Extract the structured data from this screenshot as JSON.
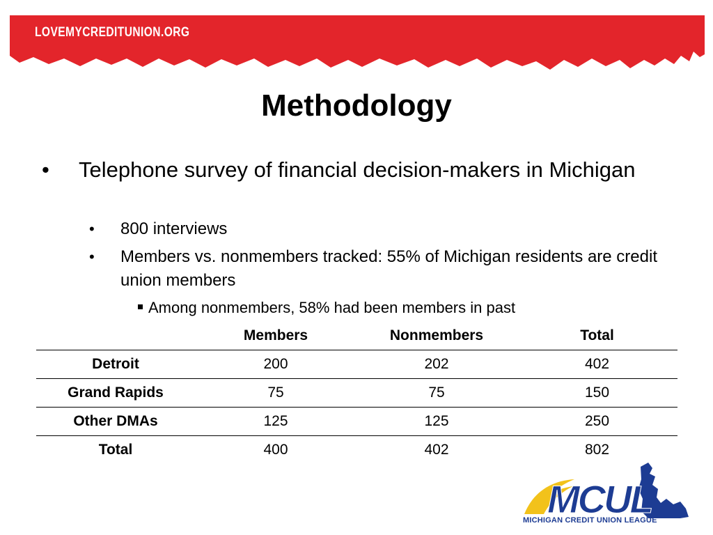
{
  "banner": {
    "url_text": "LOVEMYCREDITUNION.ORG",
    "color": "#e3252b"
  },
  "slide": {
    "title": "Methodology",
    "bullet1": "Telephone survey of financial decision-makers in Michigan",
    "bullet1_sub": [
      "800 interviews",
      "Members vs. nonmembers tracked: 55% of Michigan residents are credit union members"
    ],
    "bullet1_subsub": "Among nonmembers, 58% had been members in past"
  },
  "table": {
    "headers": [
      "",
      "Members",
      "Nonmembers",
      "Total"
    ],
    "rows": [
      [
        "Detroit",
        "200",
        "202",
        "402"
      ],
      [
        "Grand Rapids",
        "75",
        "75",
        "150"
      ],
      [
        "Other DMAs",
        "125",
        "125",
        "250"
      ],
      [
        "Total",
        "400",
        "402",
        "802"
      ]
    ]
  },
  "logo": {
    "wordmark": "MCUL",
    "tagline": "MICHIGAN CREDIT UNION LEAGUE",
    "colors": {
      "blue": "#1d3c93",
      "yellow": "#f2c21b"
    }
  }
}
